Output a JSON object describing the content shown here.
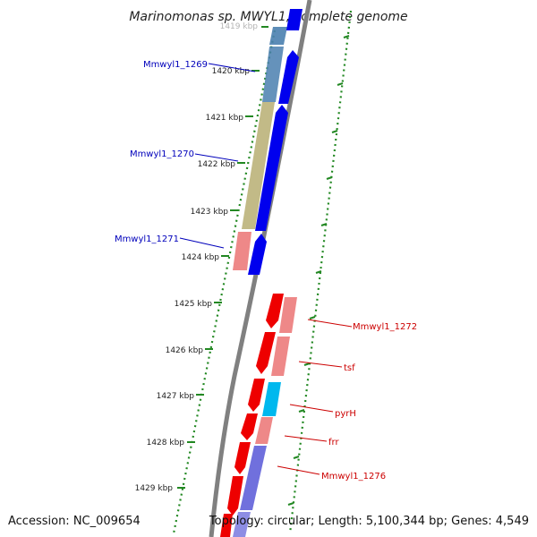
{
  "title": "Marinomonas sp. MWYL1, complete genome",
  "accession": "Accession: NC_009654",
  "summary": "Topology: circular; Length: 5,100,344 bp; Genes: 4,549",
  "colors": {
    "forward_cds": "#0000ee",
    "reverse_cds": "#ee0000",
    "forward_label": "#0000bb",
    "reverse_label": "#cc0000",
    "tick": "#228822",
    "backbone": "#808080",
    "cog_blue": "#4a7faf",
    "cog_khaki": "#bbb27a",
    "cog_pink": "#ee8888",
    "cog_cyan": "#00b8ee",
    "cog_purple": "#7070dd"
  },
  "kbp_ticks": [
    {
      "label": "1419 kbp",
      "faded": true
    },
    {
      "label": "1420 kbp"
    },
    {
      "label": "1421 kbp"
    },
    {
      "label": "1422 kbp"
    },
    {
      "label": "1423 kbp"
    },
    {
      "label": "1424 kbp"
    },
    {
      "label": "1425 kbp"
    },
    {
      "label": "1426 kbp"
    },
    {
      "label": "1427 kbp"
    },
    {
      "label": "1428 kbp"
    },
    {
      "label": "1429 kbp"
    }
  ],
  "gene_labels": [
    {
      "name": "Mmwyl1_1269",
      "strand": "forward"
    },
    {
      "name": "Mmwyl1_1270",
      "strand": "forward"
    },
    {
      "name": "Mmwyl1_1271",
      "strand": "forward"
    },
    {
      "name": "Mmwyl1_1272",
      "strand": "reverse"
    },
    {
      "name": "tsf",
      "strand": "reverse"
    },
    {
      "name": "pyrH",
      "strand": "reverse"
    },
    {
      "name": "frr",
      "strand": "reverse"
    },
    {
      "name": "Mmwyl1_1276",
      "strand": "reverse"
    }
  ]
}
